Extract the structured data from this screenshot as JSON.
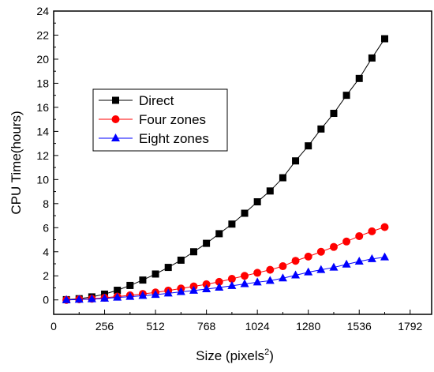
{
  "chart_data": {
    "type": "line",
    "xlabel": "Size (pixels",
    "xlabel_superscript": "2",
    "xlabel_close": ")",
    "ylabel": "CPU Time(hours)",
    "xlim": [
      0,
      1900
    ],
    "ylim": [
      -1.2,
      24
    ],
    "x_ticks": [
      0,
      256,
      512,
      768,
      1024,
      1280,
      1536,
      1792
    ],
    "y_ticks": [
      0,
      2,
      4,
      6,
      8,
      10,
      12,
      14,
      16,
      18,
      20,
      22,
      24
    ],
    "grid": false,
    "legend_position": "upper-left",
    "x": [
      64,
      128,
      192,
      256,
      320,
      384,
      448,
      512,
      576,
      640,
      704,
      768,
      832,
      896,
      960,
      1024,
      1088,
      1152,
      1216,
      1280,
      1344,
      1408,
      1472,
      1536,
      1600,
      1664
    ],
    "series": [
      {
        "name": "Direct",
        "color": "#000000",
        "marker": "square",
        "values": [
          0.02,
          0.1,
          0.25,
          0.48,
          0.8,
          1.2,
          1.65,
          2.15,
          2.7,
          3.3,
          4.0,
          4.7,
          5.5,
          6.3,
          7.2,
          8.15,
          9.05,
          10.15,
          11.55,
          12.8,
          14.2,
          15.5,
          17.0,
          18.4,
          20.1,
          21.7
        ]
      },
      {
        "name": "Four zones",
        "color": "#ff0000",
        "marker": "circle",
        "values": [
          0.0,
          0.05,
          0.1,
          0.18,
          0.28,
          0.38,
          0.5,
          0.62,
          0.78,
          0.95,
          1.12,
          1.3,
          1.5,
          1.75,
          2.0,
          2.25,
          2.5,
          2.8,
          3.25,
          3.6,
          4.0,
          4.4,
          4.85,
          5.3,
          5.7,
          6.05
        ]
      },
      {
        "name": "Eight zones",
        "color": "#0000ff",
        "marker": "triangle",
        "values": [
          0.0,
          0.03,
          0.07,
          0.12,
          0.2,
          0.27,
          0.35,
          0.43,
          0.55,
          0.67,
          0.78,
          0.9,
          1.03,
          1.17,
          1.33,
          1.47,
          1.6,
          1.8,
          2.05,
          2.3,
          2.5,
          2.7,
          2.95,
          3.2,
          3.4,
          3.55
        ]
      }
    ]
  }
}
